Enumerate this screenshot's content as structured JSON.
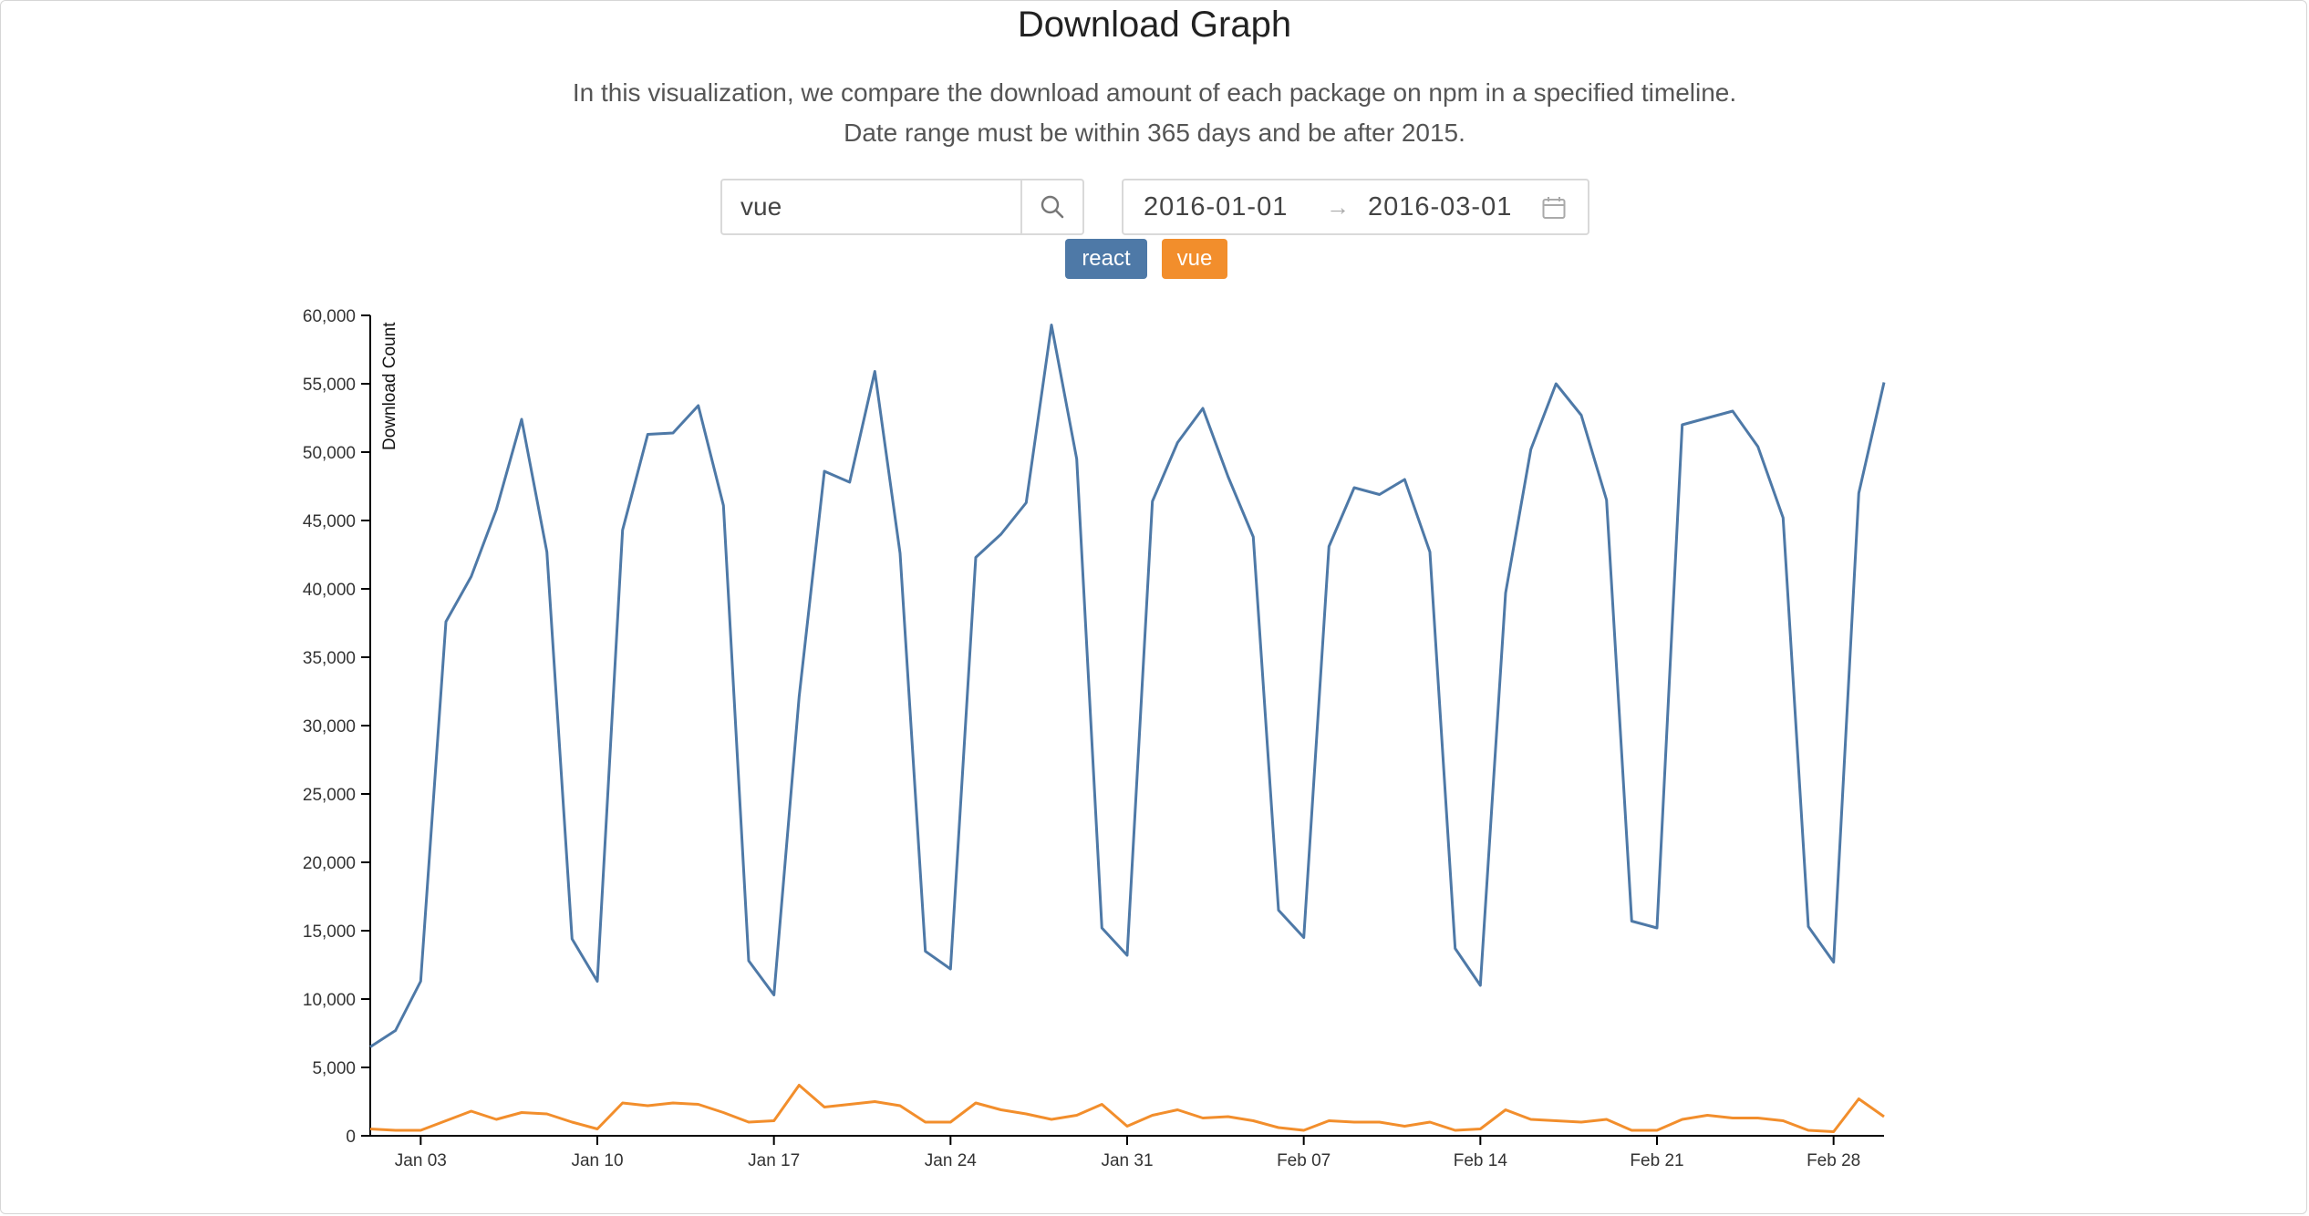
{
  "header": {
    "title": "Download Graph",
    "description_line1": "In this visualization, we compare the download amount of each package on npm in a specified timeline.",
    "description_line2": "Date range must be within 365 days and be after 2015."
  },
  "search": {
    "value": "vue",
    "icon": "search-icon"
  },
  "date_range": {
    "start": "2016-01-01",
    "separator": "→",
    "end": "2016-03-01",
    "icon": "calendar-icon"
  },
  "packages": [
    {
      "label": "react",
      "color": "#4e79a7"
    },
    {
      "label": "vue",
      "color": "#f28e2c"
    }
  ],
  "chart_data": {
    "type": "line",
    "title": "",
    "xlabel": "",
    "ylabel": "Download Count",
    "ylim": [
      0,
      60000
    ],
    "yticks": [
      "0",
      "5,000",
      "10,000",
      "15,000",
      "20,000",
      "25,000",
      "30,000",
      "35,000",
      "40,000",
      "45,000",
      "50,000",
      "55,000",
      "60,000"
    ],
    "xlim": [
      "2016-01-01",
      "2016-03-01"
    ],
    "xticks": [
      {
        "date": "2016-01-03",
        "label": "Jan 03"
      },
      {
        "date": "2016-01-10",
        "label": "Jan 10"
      },
      {
        "date": "2016-01-17",
        "label": "Jan 17"
      },
      {
        "date": "2016-01-24",
        "label": "Jan 24"
      },
      {
        "date": "2016-01-31",
        "label": "Jan 31"
      },
      {
        "date": "2016-02-07",
        "label": "Feb 07"
      },
      {
        "date": "2016-02-14",
        "label": "Feb 14"
      },
      {
        "date": "2016-02-21",
        "label": "Feb 21"
      },
      {
        "date": "2016-02-28",
        "label": "Feb 28"
      }
    ],
    "grid": false,
    "legend": "top",
    "x": [
      "2016-01-01",
      "2016-01-02",
      "2016-01-03",
      "2016-01-04",
      "2016-01-05",
      "2016-01-06",
      "2016-01-07",
      "2016-01-08",
      "2016-01-09",
      "2016-01-10",
      "2016-01-11",
      "2016-01-12",
      "2016-01-13",
      "2016-01-14",
      "2016-01-15",
      "2016-01-16",
      "2016-01-17",
      "2016-01-18",
      "2016-01-19",
      "2016-01-20",
      "2016-01-21",
      "2016-01-22",
      "2016-01-23",
      "2016-01-24",
      "2016-01-25",
      "2016-01-26",
      "2016-01-27",
      "2016-01-28",
      "2016-01-29",
      "2016-01-30",
      "2016-01-31",
      "2016-02-01",
      "2016-02-02",
      "2016-02-03",
      "2016-02-04",
      "2016-02-05",
      "2016-02-06",
      "2016-02-07",
      "2016-02-08",
      "2016-02-09",
      "2016-02-10",
      "2016-02-11",
      "2016-02-12",
      "2016-02-13",
      "2016-02-14",
      "2016-02-15",
      "2016-02-16",
      "2016-02-17",
      "2016-02-18",
      "2016-02-19",
      "2016-02-20",
      "2016-02-21",
      "2016-02-22",
      "2016-02-23",
      "2016-02-24",
      "2016-02-25",
      "2016-02-26",
      "2016-02-27",
      "2016-02-28",
      "2016-02-29",
      "2016-03-01"
    ],
    "series": [
      {
        "name": "react",
        "color": "#4e79a7",
        "values": [
          6500,
          7700,
          11300,
          37600,
          40900,
          45800,
          52400,
          42700,
          14400,
          11300,
          44300,
          51300,
          51400,
          53400,
          46100,
          12800,
          10300,
          32100,
          48600,
          47800,
          55900,
          42600,
          13500,
          12200,
          42300,
          44000,
          46300,
          59300,
          49500,
          15200,
          13200,
          46400,
          50700,
          53200,
          48200,
          43800,
          16500,
          14500,
          43100,
          47400,
          46900,
          48000,
          42700,
          13700,
          11000,
          39700,
          50200,
          55000,
          52700,
          46500,
          15700,
          15200,
          52000,
          52500,
          53000,
          50400,
          45200,
          15300,
          12700,
          47000,
          55100
        ]
      },
      {
        "name": "vue",
        "color": "#f28e2c",
        "values": [
          500,
          400,
          400,
          1100,
          1800,
          1200,
          1700,
          1600,
          1000,
          500,
          2400,
          2200,
          2400,
          2300,
          1700,
          1000,
          1100,
          3700,
          2100,
          2300,
          2500,
          2200,
          1000,
          1000,
          2400,
          1900,
          1600,
          1200,
          1500,
          2300,
          700,
          1500,
          1900,
          1300,
          1400,
          1100,
          600,
          400,
          1100,
          1000,
          1000,
          700,
          1000,
          400,
          500,
          1900,
          1200,
          1100,
          1000,
          1200,
          400,
          400,
          1200,
          1500,
          1300,
          1300,
          1100,
          400,
          300,
          2700,
          1400
        ]
      }
    ]
  }
}
